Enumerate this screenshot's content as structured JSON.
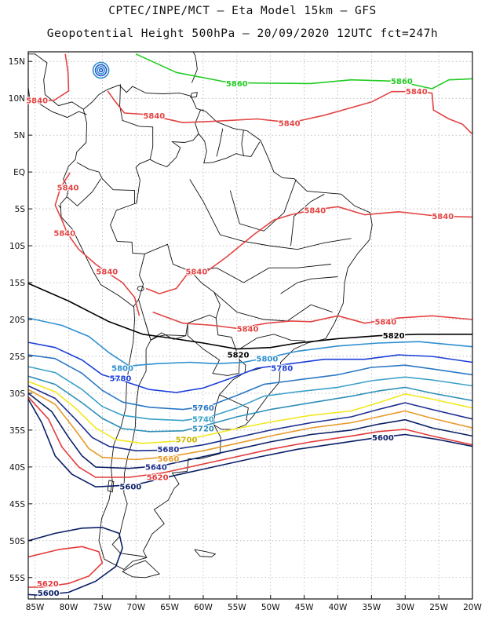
{
  "title": {
    "line1": "CPTEC/INPE/MCT –  Eta Model 15km – GFS",
    "line2": "Geopotential Height 500hPa – 20/09/2020 12UTC fct=247h"
  },
  "axes": {
    "lat_labels": [
      "15N",
      "10N",
      "5N",
      "EQ",
      "5S",
      "10S",
      "15S",
      "20S",
      "25S",
      "30S",
      "35S",
      "40S",
      "45S",
      "50S",
      "55S"
    ],
    "lon_labels": [
      "85W",
      "80W",
      "75W",
      "70W",
      "65W",
      "60W",
      "55W",
      "50W",
      "45W",
      "40W",
      "35W",
      "30W",
      "25W",
      "20W"
    ]
  },
  "colors": {
    "c5560": "#0a1f66",
    "c5580": "#e23b3b",
    "c5600": "#0a1f66",
    "c5620": "#e23b3b",
    "c5640": "#0a1f66",
    "c5660": "#e89a2a",
    "c5680": "#1d2f8f",
    "c5700": "#f2e81e",
    "c5720": "#2d8fb8",
    "c5740": "#3aa0c8",
    "c5760": "#2b78c4",
    "c5780": "#1b3fd8",
    "c5800": "#2e8fd0",
    "c5820": "#000000",
    "c5840": "#e34444",
    "c5860": "#22cc22"
  },
  "contour_labels": [
    {
      "text": "5860",
      "color": "#22cc22",
      "lon": -55.0,
      "lat": 12.0
    },
    {
      "text": "5860",
      "color": "#22cc22",
      "lon": -30.5,
      "lat": 12.3
    },
    {
      "text": "5840",
      "color": "#e34444",
      "lon": -84.7,
      "lat": 9.7
    },
    {
      "text": "5840",
      "color": "#e34444",
      "lon": -67.3,
      "lat": 7.6
    },
    {
      "text": "5840",
      "color": "#e34444",
      "lon": -47.2,
      "lat": 6.6
    },
    {
      "text": "5840",
      "color": "#e34444",
      "lon": -28.3,
      "lat": 10.9
    },
    {
      "text": "5840",
      "color": "#e34444",
      "lon": -80.1,
      "lat": -2.1
    },
    {
      "text": "5840",
      "color": "#e34444",
      "lon": -43.4,
      "lat": -5.2
    },
    {
      "text": "5840",
      "color": "#e34444",
      "lon": -24.4,
      "lat": -6.0
    },
    {
      "text": "5840",
      "color": "#e34444",
      "lon": -80.6,
      "lat": -8.3
    },
    {
      "text": "5840",
      "color": "#e34444",
      "lon": -74.3,
      "lat": -13.5
    },
    {
      "text": "5840",
      "color": "#e34444",
      "lon": -61.0,
      "lat": -13.5
    },
    {
      "text": "5840",
      "color": "#e34444",
      "lon": -53.4,
      "lat": -21.3
    },
    {
      "text": "5840",
      "color": "#e34444",
      "lon": -32.9,
      "lat": -20.3
    },
    {
      "text": "5820",
      "color": "#000000",
      "lon": -31.7,
      "lat": -22.2
    },
    {
      "text": "5820",
      "color": "#000000",
      "lon": -54.8,
      "lat": -24.8
    },
    {
      "text": "5800",
      "color": "#2e8fd0",
      "lon": -50.5,
      "lat": -25.3
    },
    {
      "text": "5800",
      "color": "#2e8fd0",
      "lon": -72.0,
      "lat": -26.6
    },
    {
      "text": "5780",
      "color": "#1b3fd8",
      "lon": -72.3,
      "lat": -28.0
    },
    {
      "text": "5780",
      "color": "#1b3fd8",
      "lon": -48.3,
      "lat": -26.6
    },
    {
      "text": "5760",
      "color": "#2b78c4",
      "lon": -60.0,
      "lat": -32.0
    },
    {
      "text": "5740",
      "color": "#3aa0c8",
      "lon": -60.0,
      "lat": -33.5
    },
    {
      "text": "5720",
      "color": "#2d8fb8",
      "lon": -60.0,
      "lat": -34.8
    },
    {
      "text": "5700",
      "color": "#c8b400",
      "lon": -62.5,
      "lat": -36.3
    },
    {
      "text": "5680",
      "color": "#1d2f8f",
      "lon": -65.2,
      "lat": -37.6
    },
    {
      "text": "5660",
      "color": "#e89a2a",
      "lon": -65.2,
      "lat": -38.9
    },
    {
      "text": "5640",
      "color": "#1d2f8f",
      "lon": -67.0,
      "lat": -40.0
    },
    {
      "text": "5620",
      "color": "#e23b3b",
      "lon": -66.8,
      "lat": -41.4
    },
    {
      "text": "5600",
      "color": "#0a1f66",
      "lon": -70.8,
      "lat": -42.7
    },
    {
      "text": "5600",
      "color": "#0a1f66",
      "lon": -33.3,
      "lat": -36.0
    },
    {
      "text": "5620",
      "color": "#e23b3b",
      "lon": -83.1,
      "lat": -55.8
    },
    {
      "text": "5600",
      "color": "#0a1f66",
      "lon": -83.0,
      "lat": -57.1
    }
  ]
}
